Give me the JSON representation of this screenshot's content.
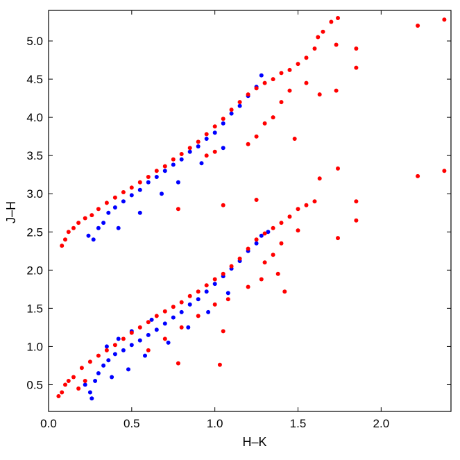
{
  "chart_data": {
    "type": "scatter",
    "title": "",
    "xlabel": "H–K",
    "ylabel": "J–H",
    "xlim": [
      0.0,
      2.42
    ],
    "ylim": [
      0.15,
      5.4
    ],
    "xticks": [
      0.0,
      0.5,
      1.0,
      1.5,
      2.0
    ],
    "xtick_labels": [
      "0.0",
      "0.5",
      "1.0",
      "1.5",
      "2.0"
    ],
    "yticks": [
      0.5,
      1.0,
      1.5,
      2.0,
      2.5,
      3.0,
      3.5,
      4.0,
      4.5,
      5.0
    ],
    "ytick_labels": [
      "0.5",
      "1.0",
      "1.5",
      "2.0",
      "2.5",
      "3.0",
      "3.5",
      "4.0",
      "4.5",
      "5.0"
    ],
    "grid": false,
    "legend": false,
    "colors": {
      "series_a": "#0000ff",
      "series_b": "#ff0000",
      "axes": "#000000"
    },
    "series": [
      {
        "color": "#0000ff",
        "points": [
          [
            0.24,
            2.45
          ],
          [
            0.27,
            2.4
          ],
          [
            0.3,
            2.55
          ],
          [
            0.33,
            2.62
          ],
          [
            0.36,
            2.75
          ],
          [
            0.4,
            2.82
          ],
          [
            0.45,
            2.9
          ],
          [
            0.5,
            2.98
          ],
          [
            0.55,
            3.05
          ],
          [
            0.6,
            3.15
          ],
          [
            0.65,
            3.22
          ],
          [
            0.7,
            3.3
          ],
          [
            0.75,
            3.38
          ],
          [
            0.8,
            3.45
          ],
          [
            0.85,
            3.55
          ],
          [
            0.9,
            3.62
          ],
          [
            0.95,
            3.72
          ],
          [
            1.0,
            3.8
          ],
          [
            1.05,
            3.92
          ],
          [
            1.1,
            4.05
          ],
          [
            1.15,
            4.15
          ],
          [
            1.2,
            4.28
          ],
          [
            1.25,
            4.4
          ],
          [
            1.28,
            4.55
          ],
          [
            0.42,
            2.55
          ],
          [
            0.55,
            2.75
          ],
          [
            0.68,
            3.0
          ],
          [
            0.78,
            3.15
          ],
          [
            0.92,
            3.4
          ],
          [
            1.05,
            3.6
          ],
          [
            0.22,
            0.5
          ],
          [
            0.25,
            0.4
          ],
          [
            0.28,
            0.55
          ],
          [
            0.3,
            0.65
          ],
          [
            0.33,
            0.75
          ],
          [
            0.36,
            0.82
          ],
          [
            0.4,
            0.9
          ],
          [
            0.45,
            0.95
          ],
          [
            0.5,
            1.02
          ],
          [
            0.55,
            1.08
          ],
          [
            0.6,
            1.15
          ],
          [
            0.65,
            1.22
          ],
          [
            0.7,
            1.3
          ],
          [
            0.75,
            1.38
          ],
          [
            0.8,
            1.45
          ],
          [
            0.85,
            1.55
          ],
          [
            0.9,
            1.62
          ],
          [
            0.95,
            1.72
          ],
          [
            1.0,
            1.82
          ],
          [
            1.05,
            1.92
          ],
          [
            1.1,
            2.02
          ],
          [
            1.15,
            2.12
          ],
          [
            1.2,
            2.25
          ],
          [
            1.25,
            2.35
          ],
          [
            1.28,
            2.45
          ],
          [
            1.32,
            2.5
          ],
          [
            0.26,
            0.32
          ],
          [
            0.38,
            0.6
          ],
          [
            0.48,
            0.7
          ],
          [
            0.58,
            0.88
          ],
          [
            0.72,
            1.05
          ],
          [
            0.84,
            1.25
          ],
          [
            0.96,
            1.45
          ],
          [
            1.08,
            1.7
          ],
          [
            0.35,
            1.0
          ],
          [
            0.42,
            1.1
          ],
          [
            0.5,
            1.2
          ],
          [
            0.62,
            1.35
          ]
        ]
      },
      {
        "color": "#ff0000",
        "points": [
          [
            0.1,
            2.4
          ],
          [
            0.12,
            2.5
          ],
          [
            0.15,
            2.55
          ],
          [
            0.18,
            2.62
          ],
          [
            0.22,
            2.68
          ],
          [
            0.26,
            2.72
          ],
          [
            0.3,
            2.8
          ],
          [
            0.35,
            2.88
          ],
          [
            0.4,
            2.95
          ],
          [
            0.45,
            3.02
          ],
          [
            0.5,
            3.08
          ],
          [
            0.55,
            3.15
          ],
          [
            0.6,
            3.22
          ],
          [
            0.65,
            3.3
          ],
          [
            0.7,
            3.36
          ],
          [
            0.75,
            3.45
          ],
          [
            0.8,
            3.52
          ],
          [
            0.85,
            3.6
          ],
          [
            0.9,
            3.68
          ],
          [
            0.95,
            3.78
          ],
          [
            1.0,
            3.88
          ],
          [
            1.05,
            3.98
          ],
          [
            1.1,
            4.1
          ],
          [
            1.15,
            4.2
          ],
          [
            1.2,
            4.3
          ],
          [
            1.25,
            4.38
          ],
          [
            1.3,
            4.45
          ],
          [
            1.35,
            4.5
          ],
          [
            1.4,
            4.58
          ],
          [
            1.45,
            4.62
          ],
          [
            1.5,
            4.7
          ],
          [
            1.55,
            4.78
          ],
          [
            1.6,
            4.9
          ],
          [
            1.62,
            5.05
          ],
          [
            1.65,
            5.12
          ],
          [
            1.74,
            5.3
          ],
          [
            1.7,
            5.25
          ],
          [
            1.73,
            4.95
          ],
          [
            1.85,
            4.9
          ],
          [
            1.85,
            4.65
          ],
          [
            1.55,
            4.45
          ],
          [
            1.73,
            4.35
          ],
          [
            1.63,
            4.3
          ],
          [
            1.45,
            4.35
          ],
          [
            1.4,
            4.2
          ],
          [
            1.35,
            4.0
          ],
          [
            1.3,
            3.92
          ],
          [
            1.48,
            3.72
          ],
          [
            1.25,
            3.75
          ],
          [
            1.2,
            3.65
          ],
          [
            1.0,
            3.55
          ],
          [
            0.95,
            3.5
          ],
          [
            2.22,
            5.2
          ],
          [
            2.38,
            5.28
          ],
          [
            2.38,
            3.3
          ],
          [
            2.22,
            3.23
          ],
          [
            0.78,
            2.8
          ],
          [
            1.05,
            2.85
          ],
          [
            1.25,
            2.92
          ],
          [
            1.85,
            2.9
          ],
          [
            1.85,
            2.65
          ],
          [
            1.74,
            2.42
          ],
          [
            1.74,
            3.33
          ],
          [
            1.63,
            3.2
          ],
          [
            0.08,
            2.32
          ],
          [
            0.06,
            0.35
          ],
          [
            0.08,
            0.4
          ],
          [
            0.1,
            0.5
          ],
          [
            0.12,
            0.55
          ],
          [
            0.15,
            0.6
          ],
          [
            0.2,
            0.72
          ],
          [
            0.25,
            0.8
          ],
          [
            0.3,
            0.88
          ],
          [
            0.35,
            0.95
          ],
          [
            0.4,
            1.02
          ],
          [
            0.45,
            1.1
          ],
          [
            0.5,
            1.18
          ],
          [
            0.55,
            1.25
          ],
          [
            0.6,
            1.32
          ],
          [
            0.65,
            1.4
          ],
          [
            0.7,
            1.46
          ],
          [
            0.75,
            1.52
          ],
          [
            0.8,
            1.58
          ],
          [
            0.85,
            1.66
          ],
          [
            0.9,
            1.72
          ],
          [
            0.95,
            1.8
          ],
          [
            1.0,
            1.88
          ],
          [
            1.05,
            1.95
          ],
          [
            1.1,
            2.05
          ],
          [
            1.15,
            2.15
          ],
          [
            1.2,
            2.28
          ],
          [
            1.25,
            2.4
          ],
          [
            1.3,
            2.48
          ],
          [
            1.35,
            2.55
          ],
          [
            1.4,
            2.62
          ],
          [
            1.45,
            2.7
          ],
          [
            1.5,
            2.8
          ],
          [
            1.55,
            2.85
          ],
          [
            1.6,
            2.9
          ],
          [
            1.5,
            2.52
          ],
          [
            1.4,
            2.35
          ],
          [
            1.35,
            2.2
          ],
          [
            1.3,
            2.1
          ],
          [
            1.38,
            1.95
          ],
          [
            1.28,
            1.88
          ],
          [
            1.2,
            1.78
          ],
          [
            1.08,
            1.62
          ],
          [
            1.0,
            1.55
          ],
          [
            0.9,
            1.4
          ],
          [
            0.8,
            1.25
          ],
          [
            0.7,
            1.1
          ],
          [
            0.6,
            0.95
          ],
          [
            0.78,
            0.78
          ],
          [
            1.03,
            0.76
          ],
          [
            1.05,
            1.2
          ],
          [
            1.42,
            1.72
          ],
          [
            0.22,
            0.55
          ],
          [
            0.18,
            0.45
          ]
        ]
      }
    ]
  }
}
